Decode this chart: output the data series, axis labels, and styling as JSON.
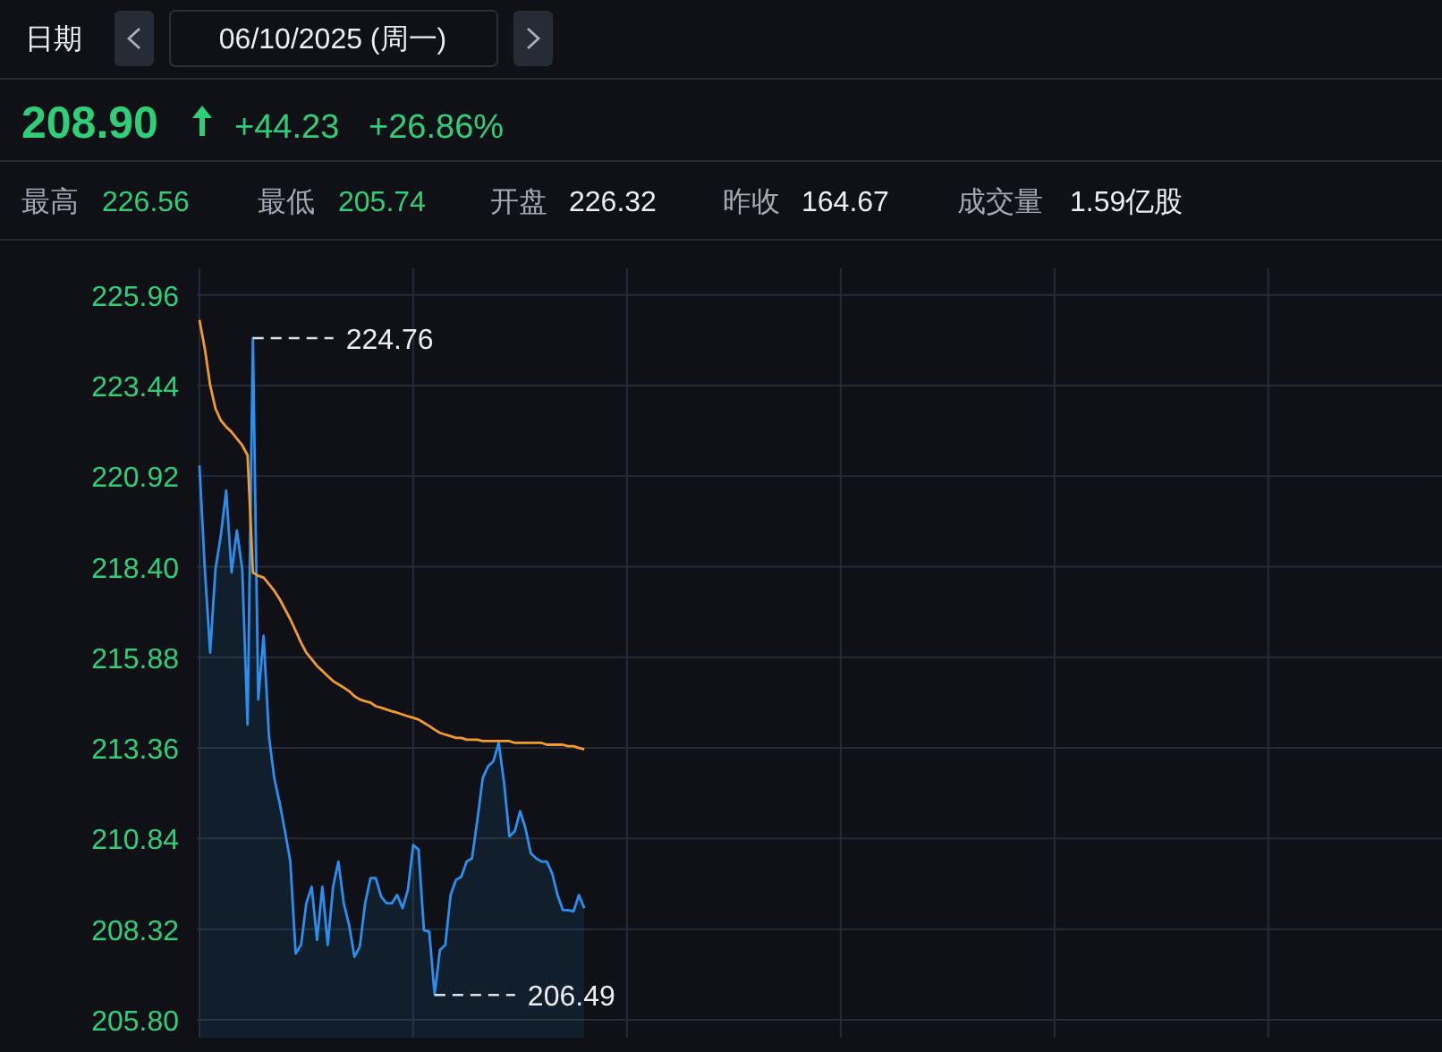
{
  "chart_data": {
    "type": "line",
    "annotations": [
      "日期",
      "06/10/2025 (周一)",
      "208.90",
      "+44.23",
      "+26.86%",
      "最高",
      "226.56",
      "最低",
      "205.74",
      "开盘",
      "226.32",
      "昨收",
      "164.67",
      "成交量",
      "1.59亿股",
      "224.76",
      "206.49"
    ],
    "categories": [
      null,
      null,
      null,
      null,
      null,
      null,
      null,
      null,
      null,
      null,
      null,
      null,
      null,
      null,
      null,
      null,
      null,
      null,
      null,
      null,
      null,
      null,
      null,
      null,
      null,
      null,
      null,
      null,
      null,
      null,
      null,
      null,
      null,
      null,
      null,
      null,
      null,
      null,
      null,
      null,
      null,
      null,
      null,
      null,
      null,
      null,
      null,
      null,
      null,
      null,
      null,
      null,
      null,
      null,
      null,
      null,
      null,
      null,
      null,
      null,
      null,
      null,
      null,
      null,
      null,
      null,
      null,
      null,
      null,
      null,
      null,
      null,
      null,
      null,
      null,
      null,
      null,
      null,
      null,
      null,
      null,
      null,
      null,
      null,
      null,
      null,
      null,
      null,
      null,
      null,
      null,
      null,
      null,
      null,
      null,
      null,
      null,
      null,
      null,
      null,
      null,
      null,
      null,
      null,
      null,
      null,
      null,
      null,
      null,
      null,
      null,
      null,
      null,
      null,
      null,
      null,
      null,
      null,
      null,
      null,
      null,
      null,
      null,
      null,
      null,
      null,
      null,
      null,
      null,
      null,
      null,
      null,
      null,
      null,
      null,
      null,
      null,
      null,
      null,
      null,
      null,
      null,
      null,
      null,
      null,
      null,
      null,
      null,
      null,
      null,
      null,
      null,
      null,
      null,
      null,
      null,
      null,
      null,
      null,
      null,
      null,
      null,
      null,
      null,
      null,
      null,
      null,
      null,
      null,
      null,
      null,
      null,
      null,
      null,
      null,
      null,
      null,
      null,
      null,
      null,
      null,
      null,
      null,
      null,
      null,
      null,
      null,
      null,
      null,
      null,
      null,
      null,
      null,
      null,
      null,
      null,
      null,
      null,
      null,
      null,
      null,
      null,
      null,
      null,
      null,
      null,
      null,
      null,
      null,
      null,
      null,
      null,
      null,
      null,
      null,
      null,
      null,
      null,
      null,
      null,
      null,
      null,
      null,
      null,
      null,
      null,
      null,
      null,
      null,
      null,
      null
    ],
    "series": [
      {
        "type": "area",
        "color": "#2b8ff0",
        "values": [
          221.22,
          218.34,
          216.01,
          218.34,
          219.27,
          220.52,
          218.24,
          219.41,
          218.34,
          214.01,
          224.76,
          214.71,
          216.48,
          213.69,
          212.52,
          211.83,
          211.04,
          210.2,
          207.64,
          207.88,
          209.04,
          209.5,
          208.02,
          209.5,
          207.88,
          209.5,
          210.2,
          209.04,
          208.43,
          207.55,
          207.83,
          209.04,
          209.74,
          209.74,
          209.22,
          209.04,
          209.04,
          209.27,
          208.9,
          209.41,
          210.66,
          210.53,
          208.29,
          208.25,
          206.49,
          207.74,
          207.88,
          209.27,
          209.69,
          209.78,
          210.2,
          210.29,
          211.36,
          212.52,
          212.85,
          212.99,
          213.5,
          212.39,
          210.9,
          211.04,
          211.6,
          211.13,
          210.43,
          210.29,
          210.2,
          210.2,
          209.87,
          209.27,
          208.85,
          208.85,
          208.81,
          209.27,
          208.9,
          null,
          null,
          null,
          null,
          null,
          null,
          null,
          null,
          null,
          null,
          null,
          null,
          null,
          null,
          null,
          null,
          null,
          null,
          null,
          null,
          null,
          null,
          null,
          null,
          null,
          null,
          null,
          null,
          null,
          null,
          null,
          null,
          null,
          null,
          null,
          null,
          null,
          null,
          null,
          null,
          null,
          null,
          null,
          null,
          null,
          null,
          null,
          null,
          null,
          null,
          null,
          null,
          null,
          null,
          null,
          null,
          null,
          null,
          null,
          null,
          null,
          null,
          null,
          null,
          null,
          null,
          null,
          null,
          null,
          null,
          null,
          null,
          null,
          null,
          null,
          null,
          null,
          null,
          null,
          null,
          null,
          null,
          null,
          null,
          null,
          null,
          null,
          null,
          null,
          null,
          null,
          null,
          null,
          null,
          null,
          null,
          null,
          null,
          null,
          null,
          null,
          null,
          null,
          null,
          null,
          null,
          null,
          null,
          null,
          null,
          null,
          null,
          null,
          null,
          null,
          null,
          null,
          null,
          null,
          null,
          null,
          null,
          null,
          null,
          null,
          null,
          null,
          null,
          null,
          null,
          null,
          null,
          null,
          null,
          null,
          null,
          null,
          null,
          null,
          null,
          null,
          null,
          null,
          null,
          null,
          null,
          null,
          null,
          null,
          null,
          null,
          null,
          null,
          null,
          null,
          null,
          null,
          null
        ]
      },
      {
        "color": "#f39c2b",
        "values": [
          225.26,
          224.47,
          223.45,
          222.8,
          222.47,
          222.29,
          222.15,
          221.96,
          221.78,
          221.5,
          218.24,
          218.15,
          218.1,
          217.92,
          217.73,
          217.5,
          217.22,
          216.94,
          216.62,
          216.29,
          216.01,
          215.83,
          215.64,
          215.5,
          215.36,
          215.22,
          215.13,
          215.04,
          214.94,
          214.8,
          214.71,
          214.66,
          214.62,
          214.52,
          214.48,
          214.43,
          214.38,
          214.34,
          214.29,
          214.24,
          214.2,
          214.15,
          214.06,
          213.97,
          213.87,
          213.78,
          213.73,
          213.69,
          213.64,
          213.64,
          213.59,
          213.59,
          213.59,
          213.55,
          213.55,
          213.55,
          213.55,
          213.55,
          213.55,
          213.5,
          213.5,
          213.5,
          213.5,
          213.5,
          213.5,
          213.45,
          213.45,
          213.45,
          213.45,
          213.41,
          213.41,
          213.36,
          213.32,
          null,
          null,
          null,
          null,
          null,
          null,
          null,
          null,
          null,
          null,
          null,
          null,
          null,
          null,
          null,
          null,
          null,
          null,
          null,
          null,
          null,
          null,
          null,
          null,
          null,
          null,
          null,
          null,
          null,
          null,
          null,
          null,
          null,
          null,
          null,
          null,
          null,
          null,
          null,
          null,
          null,
          null,
          null,
          null,
          null,
          null,
          null,
          null,
          null,
          null,
          null,
          null,
          null,
          null,
          null,
          null,
          null,
          null,
          null,
          null,
          null,
          null,
          null,
          null,
          null,
          null,
          null,
          null,
          null,
          null,
          null,
          null,
          null,
          null,
          null,
          null,
          null,
          null,
          null,
          null,
          null,
          null,
          null,
          null,
          null,
          null,
          null,
          null,
          null,
          null,
          null,
          null,
          null,
          null,
          null,
          null,
          null,
          null,
          null,
          null,
          null,
          null,
          null,
          null,
          null,
          null,
          null,
          null,
          null,
          null,
          null,
          null,
          null,
          null,
          null,
          null,
          null,
          null,
          null,
          null,
          null,
          null,
          null,
          null,
          null,
          null,
          null,
          null,
          null,
          null,
          null,
          null,
          null,
          null,
          null,
          null,
          null,
          null,
          null,
          null,
          null,
          null,
          null,
          null,
          null,
          null,
          null,
          null,
          null,
          null,
          null,
          null,
          null,
          null,
          null,
          null,
          null,
          null
        ]
      }
    ],
    "ylim": [
      205.3,
      226.7
    ],
    "yticks": [
      {
        "value": 205.8,
        "label": "205.80"
      },
      208.32,
      210.84,
      213.36,
      215.88,
      {
        "value": 218.4,
        "label": "218.40"
      },
      220.92,
      223.44,
      225.96
    ],
    "grid": true,
    "tick_labels": "y"
  }
}
